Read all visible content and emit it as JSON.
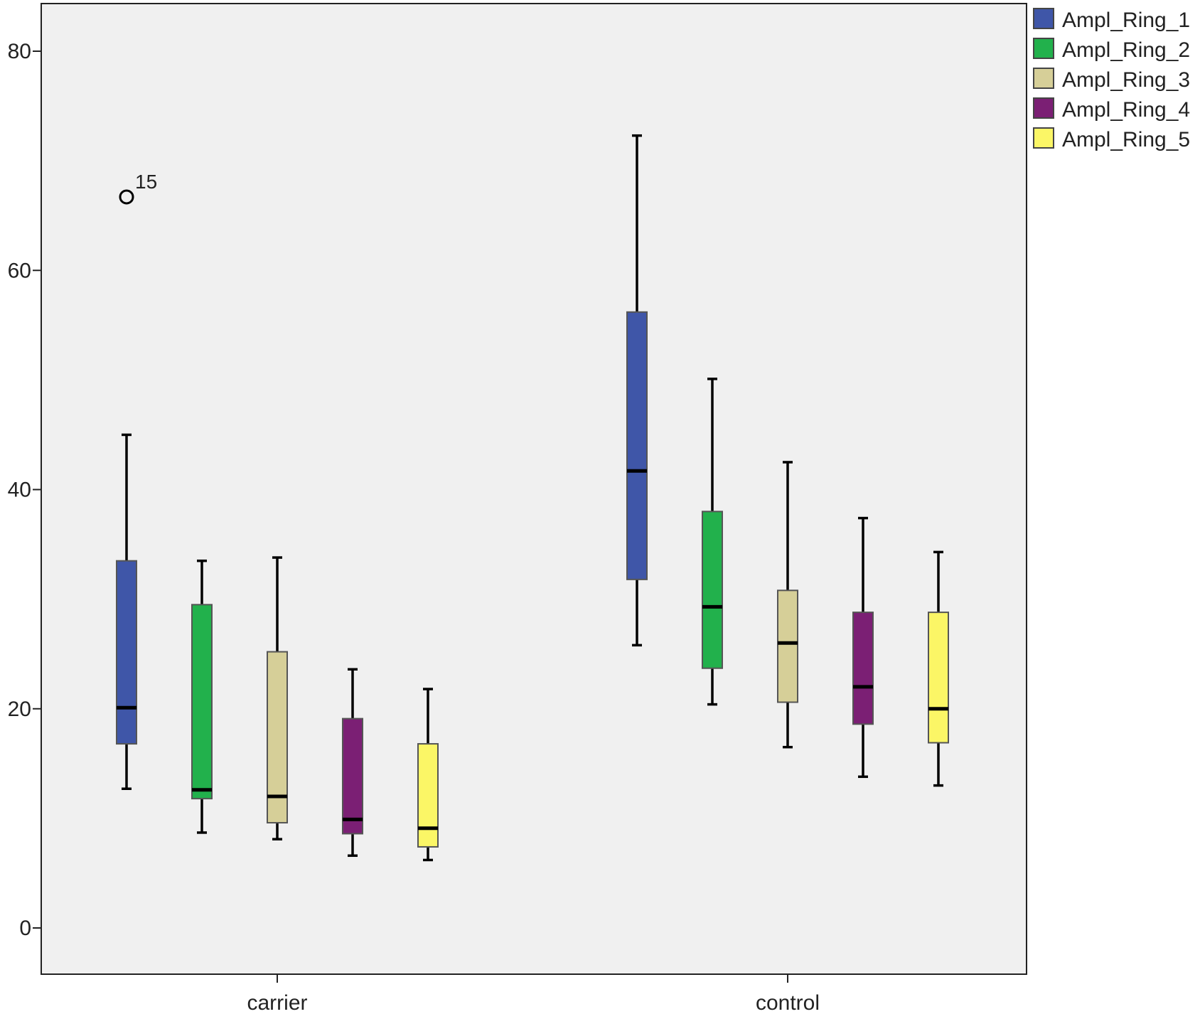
{
  "chart_data": {
    "type": "boxplot",
    "title": "",
    "xlabel": "",
    "ylabel": "",
    "ylim": [
      -4,
      84
    ],
    "yticks": [
      0,
      20,
      40,
      60,
      80
    ],
    "yticks_text": [
      "0",
      "20",
      "40",
      "60",
      "80"
    ],
    "grid": false,
    "legend_position": "right",
    "categories": [
      "carrier",
      "control"
    ],
    "series": [
      {
        "name": "Ampl_Ring_1",
        "color": "#3F56A8",
        "boxes": [
          {
            "min": 12.7,
            "q1": 16.8,
            "median": 20.1,
            "q3": 33.5,
            "max": 45.0,
            "outliers": [
              {
                "value": 66.7,
                "label": "15"
              }
            ]
          },
          {
            "min": 25.8,
            "q1": 31.8,
            "median": 41.7,
            "q3": 56.2,
            "max": 72.3,
            "outliers": []
          }
        ]
      },
      {
        "name": "Ampl_Ring_2",
        "color": "#22B14C",
        "boxes": [
          {
            "min": 8.7,
            "q1": 11.8,
            "median": 12.6,
            "q3": 29.5,
            "max": 33.5,
            "outliers": []
          },
          {
            "min": 20.4,
            "q1": 23.7,
            "median": 29.3,
            "q3": 38.0,
            "max": 50.1,
            "outliers": []
          }
        ]
      },
      {
        "name": "Ampl_Ring_3",
        "color": "#D6CF98",
        "boxes": [
          {
            "min": 8.1,
            "q1": 9.6,
            "median": 12.0,
            "q3": 25.2,
            "max": 33.8,
            "outliers": []
          },
          {
            "min": 16.5,
            "q1": 20.6,
            "median": 26.0,
            "q3": 30.8,
            "max": 42.5,
            "outliers": []
          }
        ]
      },
      {
        "name": "Ampl_Ring_4",
        "color": "#7B1F74",
        "boxes": [
          {
            "min": 6.6,
            "q1": 8.6,
            "median": 9.9,
            "q3": 19.1,
            "max": 23.6,
            "outliers": []
          },
          {
            "min": 13.8,
            "q1": 18.6,
            "median": 22.0,
            "q3": 28.8,
            "max": 37.4,
            "outliers": []
          }
        ]
      },
      {
        "name": "Ampl_Ring_5",
        "color": "#FBF666",
        "boxes": [
          {
            "min": 6.2,
            "q1": 7.4,
            "median": 9.1,
            "q3": 16.8,
            "max": 21.8,
            "outliers": []
          },
          {
            "min": 13.0,
            "q1": 16.9,
            "median": 20.0,
            "q3": 28.8,
            "max": 34.3,
            "outliers": []
          }
        ]
      }
    ]
  }
}
